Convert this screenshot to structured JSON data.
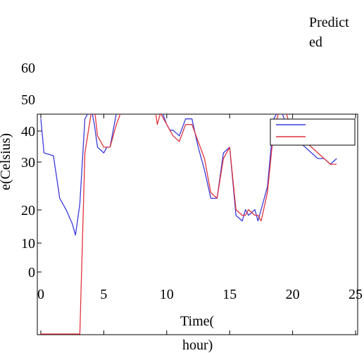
{
  "chart_data": {
    "type": "line",
    "title": "",
    "xlabel": "Time(hour)",
    "xlabel_lines": [
      "Time(",
      "hour)"
    ],
    "ylabel": "e(Celsius)",
    "legend_text": "Predicted",
    "legend_text_lines": [
      "Predict",
      "ed"
    ],
    "legend_placement": "top-right",
    "xlim": [
      0,
      25
    ],
    "xticks": [
      0,
      5,
      10,
      15,
      20,
      25
    ],
    "xtick_labels": [
      "0",
      "5",
      "10",
      "15",
      "20",
      "25"
    ],
    "yticks": [
      0,
      10,
      20,
      30,
      40,
      50,
      60
    ],
    "ytick_labels": [
      "0",
      "10",
      "20",
      "30",
      "40",
      "50",
      "60"
    ],
    "grid": false,
    "colors": {
      "actual": "#3b3bdc",
      "predicted": "#e0343c"
    },
    "series": [
      {
        "key": "actual",
        "color": "#3b3bdc",
        "x": [
          0,
          0.25,
          1,
          1.5,
          2,
          2.5,
          2.75,
          3.1,
          3.5,
          4,
          4.25,
          4.5,
          5,
          5.25,
          5.5,
          6,
          6.5,
          7,
          7.25,
          7.5,
          8,
          8.25,
          8.5,
          9,
          9.25,
          9.5,
          10,
          10.25,
          10.5,
          11,
          11.5,
          12,
          12.5,
          13,
          13.5,
          14,
          14.5,
          15,
          15.5,
          16,
          16.25,
          16.5,
          17,
          17.25,
          17.5,
          18,
          18.5,
          19,
          19.5,
          20,
          20.5,
          21,
          21.5,
          22,
          22.5,
          23,
          23.5
        ],
        "y": [
          26,
          20,
          19.5,
          12,
          10,
          7.5,
          5.5,
          11,
          26,
          28,
          25,
          21,
          20,
          21,
          21,
          27,
          28,
          34,
          38,
          38,
          39,
          35,
          31,
          29,
          27,
          28,
          25,
          24,
          24,
          23,
          26,
          26,
          21,
          17,
          12,
          12,
          20,
          21,
          9,
          8,
          10,
          9,
          10,
          8,
          10,
          14,
          26,
          28,
          25,
          23,
          22,
          21,
          20,
          19,
          19,
          18,
          19
        ]
      },
      {
        "key": "predicted",
        "color": "#e0343c",
        "x": [
          0,
          0.25,
          1,
          1.5,
          2,
          2.5,
          2.75,
          3.1,
          3.5,
          4,
          4.25,
          4.5,
          5,
          5.25,
          5.5,
          6,
          6.5,
          7,
          7.25,
          7.5,
          8,
          8.25,
          8.5,
          9,
          9.25,
          9.5,
          10,
          10.25,
          10.5,
          11,
          11.5,
          12,
          12.5,
          13,
          13.5,
          14,
          14.5,
          15,
          15.5,
          16,
          16.25,
          16.5,
          17,
          17.25,
          17.5,
          18,
          18.5,
          19,
          19.5,
          20,
          20.5,
          21,
          21.5,
          22,
          22.5,
          23,
          23.5
        ],
        "y": [
          -30,
          -30,
          -30,
          -30,
          -30,
          -30,
          -30,
          -30,
          20,
          27,
          28,
          23,
          21,
          21,
          21,
          25,
          28,
          33,
          37,
          37,
          39,
          37,
          30,
          29,
          25,
          27,
          25,
          24,
          23,
          22,
          25,
          25,
          22,
          19,
          13,
          12,
          19,
          21,
          10,
          9,
          9,
          10,
          9,
          9,
          8,
          13,
          24,
          28,
          27,
          23,
          23,
          22,
          21,
          20,
          19,
          18,
          18
        ]
      }
    ]
  }
}
